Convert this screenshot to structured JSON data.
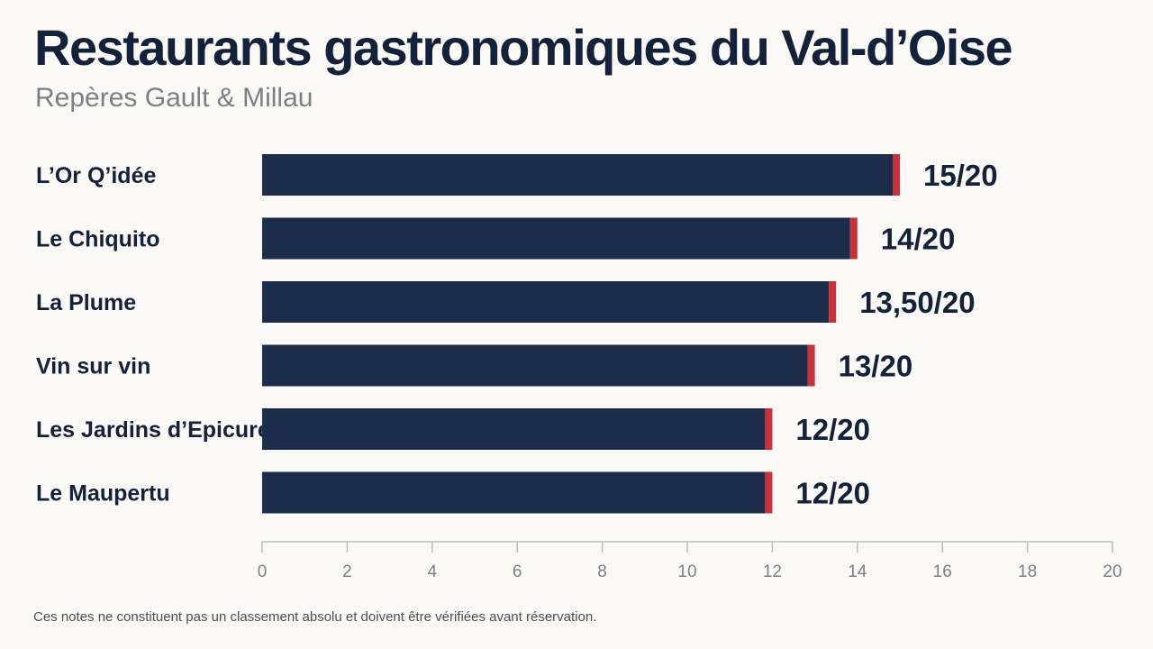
{
  "header": {
    "title": "Restaurants gastronomiques du Val-d’Oise",
    "subtitle": "Repères Gault & Millau"
  },
  "footer": {
    "note": "Ces notes ne constituent pas un classement absolu et doivent être vérifiées avant réservation."
  },
  "colors": {
    "bar": "#1b2d4a",
    "accent": "#c8313a",
    "axis": "#b9bcc2",
    "tick_label": "#7b7f86",
    "label": "#14213a"
  },
  "chart_data": {
    "type": "bar",
    "orientation": "horizontal",
    "categories": [
      "L’Or Q’idée",
      "Le Chiquito",
      "La Plume",
      "Vin sur vin",
      "Les Jardins d’Epicure",
      "Le Maupertu"
    ],
    "values": [
      15,
      14,
      13.5,
      13,
      12,
      12
    ],
    "data_labels": [
      "15/20",
      "14/20",
      "13,50/20",
      "13/20",
      "12/20",
      "12/20"
    ],
    "xlim": [
      0,
      20
    ],
    "xticks": [
      0,
      2,
      4,
      6,
      8,
      10,
      12,
      14,
      16,
      18,
      20
    ],
    "grid": false,
    "legend": "none"
  }
}
